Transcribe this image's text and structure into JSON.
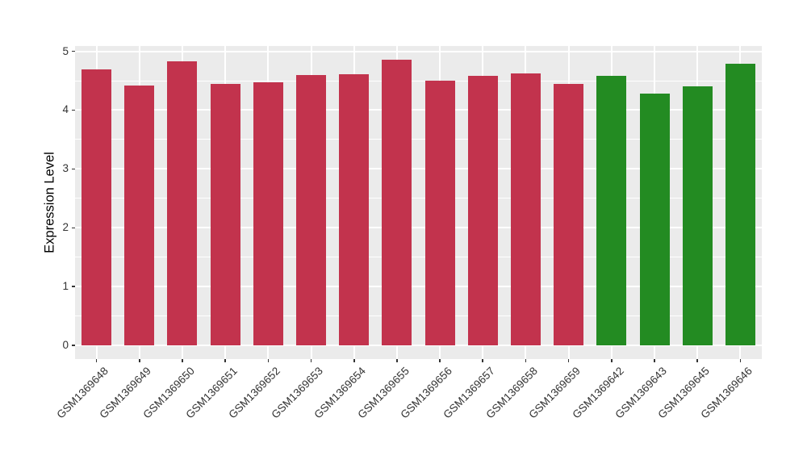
{
  "figure": {
    "background": "#FFFFFF",
    "panel_background": "#EBEBEB",
    "gridline_color": "#FFFFFF",
    "tick_color": "#333333",
    "tick_text_color": "#333333",
    "axis_title_color": "#000000"
  },
  "chart_data": {
    "type": "bar",
    "title": "",
    "xlabel": "",
    "ylabel": "Expression Level",
    "ylim": [
      -0.23,
      5.09
    ],
    "yticks": [
      0,
      1,
      2,
      3,
      4,
      5
    ],
    "ytick_labels": [
      "0",
      "1",
      "2",
      "3",
      "4",
      "5"
    ],
    "grid": "white gridlines on gray panel: horizontal major at integers, horizontal minor at half-integers, vertical major at each category center",
    "legend": "none",
    "x_label_rotation_deg": 45,
    "categories": [
      "GSM1369648",
      "GSM1369649",
      "GSM1369650",
      "GSM1369651",
      "GSM1369652",
      "GSM1369653",
      "GSM1369654",
      "GSM1369655",
      "GSM1369656",
      "GSM1369657",
      "GSM1369658",
      "GSM1369659",
      "GSM1369642",
      "GSM1369643",
      "GSM1369645",
      "GSM1369646"
    ],
    "values": [
      4.69,
      4.42,
      4.83,
      4.45,
      4.47,
      4.59,
      4.61,
      4.86,
      4.5,
      4.58,
      4.62,
      4.45,
      4.58,
      4.28,
      4.4,
      4.79
    ],
    "bar_colors": [
      "#C2334D",
      "#C2334D",
      "#C2334D",
      "#C2334D",
      "#C2334D",
      "#C2334D",
      "#C2334D",
      "#C2334D",
      "#C2334D",
      "#C2334D",
      "#C2334D",
      "#C2334D",
      "#238B22",
      "#238B22",
      "#238B22",
      "#238B22"
    ],
    "group_colors": {
      "group1_red": "#C2334D",
      "group2_green": "#238B22"
    }
  }
}
